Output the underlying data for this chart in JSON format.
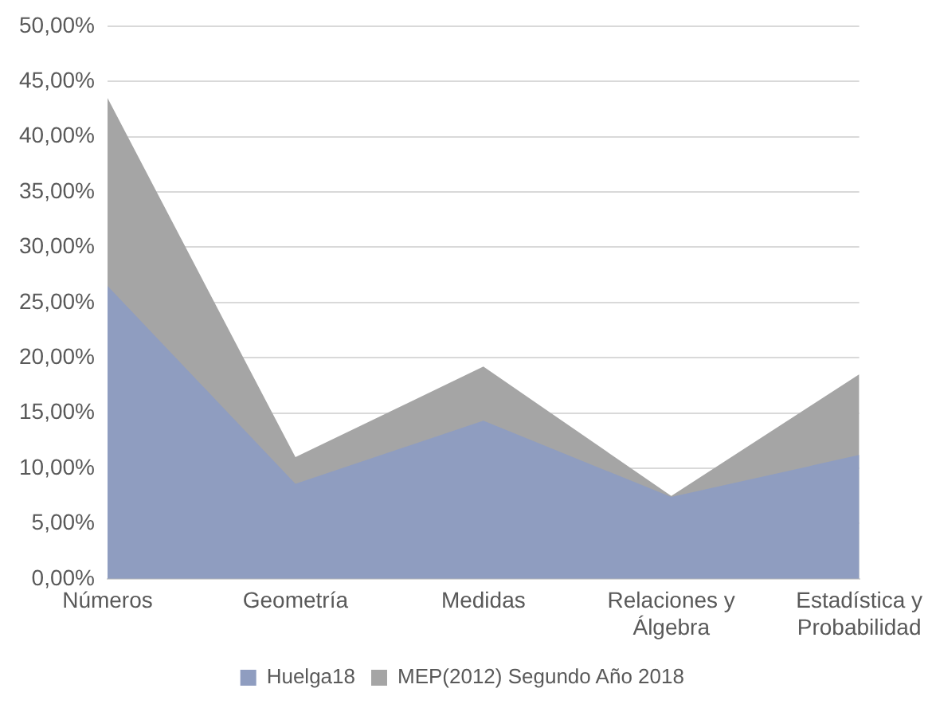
{
  "chart_data": {
    "type": "area",
    "categories": [
      "Números",
      "Geometría",
      "Medidas",
      "Relaciones y Álgebra",
      "Estadística y Probabilidad"
    ],
    "series": [
      {
        "name": "MEP(2012) Segundo Año 2018",
        "color": "#a5a5a5",
        "values": [
          43.5,
          11,
          19.2,
          7.5,
          18.5
        ]
      },
      {
        "name": "Huelga18",
        "color": "#8f9dc0",
        "values": [
          26.5,
          8.6,
          14.3,
          7.4,
          11.2
        ]
      }
    ],
    "ylim": [
      0,
      50
    ],
    "yticks": [
      {
        "value": 0,
        "label": "0,00%"
      },
      {
        "value": 5,
        "label": "5,00%"
      },
      {
        "value": 10,
        "label": "10,00%"
      },
      {
        "value": 15,
        "label": "15,00%"
      },
      {
        "value": 20,
        "label": "20,00%"
      },
      {
        "value": 25,
        "label": "25,00%"
      },
      {
        "value": 30,
        "label": "30,00%"
      },
      {
        "value": 35,
        "label": "35,00%"
      },
      {
        "value": 40,
        "label": "40,00%"
      },
      {
        "value": 45,
        "label": "45,00%"
      },
      {
        "value": 50,
        "label": "50,00%"
      }
    ],
    "grid": "y",
    "legend": "bottom"
  }
}
